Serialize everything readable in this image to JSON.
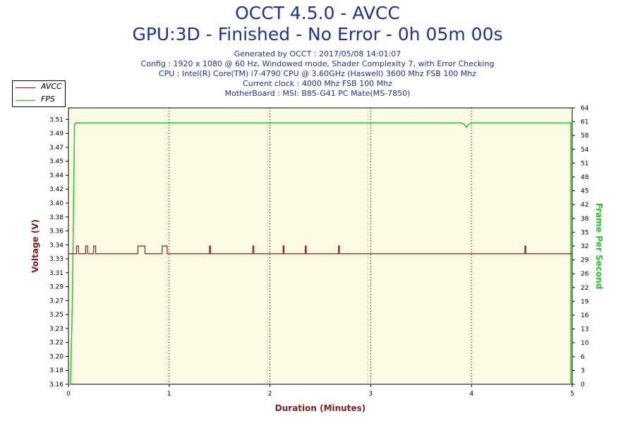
{
  "header": {
    "title_line1": "OCCT 4.5.0 - AVCC",
    "title_line2": "GPU:3D - Finished - No Error - 0h 05m 00s",
    "info_lines": [
      "Generated by OCCT : 2017/05/08 14:01:07",
      "Config : 1920 x 1080 @ 60 Hz, Windowed mode, Shader Complexity 7, with Error Checking",
      "CPU : Intel(R) Core(TM) i7-4790 CPU @ 3.60GHz (Haswell) 3600 Mhz FSB 100 Mhz",
      "Current clock : 4000 Mhz FSB 100 Mhz",
      "MotherBoard : MSI: B85-G41 PC Mate(MS-7850)"
    ]
  },
  "legend": [
    {
      "name": "AVCC",
      "color": "#8b1a1a"
    },
    {
      "name": "FPS",
      "color": "#22cc22"
    }
  ],
  "chart_data": {
    "type": "line",
    "xlabel": "Duration (Minutes)",
    "ylabel": "Voltage (V)",
    "y2label": "Frame Per Second",
    "xlim": [
      0,
      5
    ],
    "ylim": [
      3.16,
      3.52
    ],
    "y2lim": [
      0,
      64
    ],
    "x_ticks": [
      "0",
      "1",
      "2",
      "3",
      "4",
      "5"
    ],
    "y_ticks": [
      "3.16",
      "3.18",
      "3.20",
      "3.22",
      "3.23",
      "3.25",
      "3.27",
      "3.29",
      "3.31",
      "3.33",
      "3.34",
      "3.36",
      "3.38",
      "3.40",
      "3.42",
      "3.44",
      "3.45",
      "3.47",
      "3.49",
      "3.51"
    ],
    "y2_ticks": [
      "0",
      "3",
      "6",
      "10",
      "13",
      "16",
      "19",
      "22",
      "26",
      "29",
      "32",
      "35",
      "38",
      "42",
      "45",
      "48",
      "51",
      "54",
      "58",
      "61",
      "64"
    ],
    "grid": true,
    "legend_position": "top-left",
    "colors": {
      "avcc": "#8b1a1a",
      "fps": "#22cc22",
      "plot_bg": "#fbfbe4",
      "axis_label": "#8b1a1a",
      "y2_label": "#22cc22"
    },
    "series": [
      {
        "name": "AVCC",
        "axis": "left",
        "x": [
          0,
          0.07,
          0.08,
          0.09,
          0.1,
          0.16,
          0.17,
          0.18,
          0.19,
          0.24,
          0.25,
          0.26,
          0.27,
          0.68,
          0.69,
          0.7,
          0.71,
          0.74,
          0.75,
          0.76,
          0.92,
          0.93,
          0.97,
          0.98,
          1.39,
          1.4,
          1.41,
          1.82,
          1.83,
          1.84,
          2.12,
          2.13,
          2.14,
          2.34,
          2.35,
          2.36,
          2.67,
          2.68,
          2.69,
          4.52,
          4.53,
          4.54,
          5.0
        ],
        "y": [
          3.33,
          3.33,
          3.34,
          3.34,
          3.33,
          3.33,
          3.34,
          3.34,
          3.33,
          3.33,
          3.34,
          3.34,
          3.33,
          3.33,
          3.34,
          3.34,
          3.34,
          3.34,
          3.34,
          3.33,
          3.33,
          3.34,
          3.34,
          3.33,
          3.33,
          3.34,
          3.33,
          3.33,
          3.34,
          3.33,
          3.33,
          3.34,
          3.33,
          3.33,
          3.34,
          3.33,
          3.33,
          3.34,
          3.33,
          3.33,
          3.34,
          3.33,
          3.33
        ]
      },
      {
        "name": "FPS",
        "axis": "right",
        "x": [
          0,
          0.02,
          0.03,
          0.04,
          0.05,
          0.06,
          0.07,
          1.0,
          2.0,
          3.0,
          3.5,
          3.9,
          3.93,
          3.95,
          3.97,
          4.0,
          4.5,
          5.0
        ],
        "y": [
          0,
          0,
          10,
          20,
          40,
          60,
          60.5,
          60.5,
          60.5,
          60.5,
          60.5,
          60.5,
          60.2,
          59.5,
          60.2,
          60.5,
          60.5,
          60.5
        ]
      }
    ]
  }
}
